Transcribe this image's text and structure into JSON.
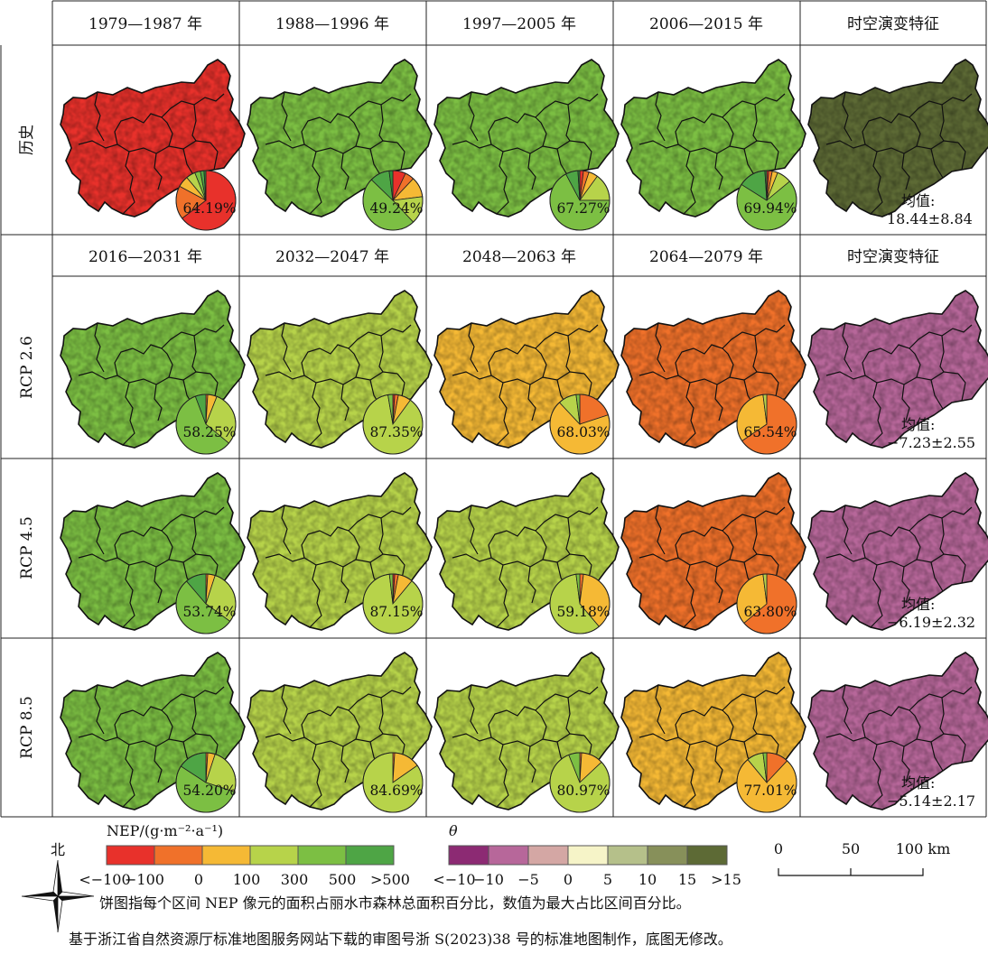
{
  "headers_top": [
    "1979—1987 年",
    "1988—1996 年",
    "1997—2005 年",
    "2006—2015 年",
    "时空演变特征"
  ],
  "headers_bottom": [
    "2016—2031 年",
    "2032—2047 年",
    "2048—2063 年",
    "2064—2079 年",
    "时空演变特征"
  ],
  "rows": [
    {
      "label": "历史",
      "cells": [
        {
          "map_class": 0,
          "pie": [
            0.6419,
            0.18,
            0.06,
            0.05,
            0.03,
            0.02,
            0.01
          ],
          "pct": "64.19%"
        },
        {
          "map_class": 4,
          "pie": [
            0.07,
            0.05,
            0.11,
            0.15,
            0.4924,
            0.1076,
            0.02
          ],
          "pct": "49.24%"
        },
        {
          "map_class": 4,
          "pie": [
            0.02,
            0.03,
            0.05,
            0.15,
            0.6727,
            0.0673,
            0.01
          ],
          "pct": "67.27%"
        },
        {
          "map_class": 4,
          "pie": [
            0.01,
            0.02,
            0.03,
            0.08,
            0.6994,
            0.1506,
            0.01
          ],
          "pct": "69.94%"
        }
      ],
      "theta": {
        "map_class": 6,
        "label": "均值:",
        "value": "18.44±8.84"
      }
    },
    {
      "label": "RCP 2.6",
      "cells": [
        {
          "map_class": 4,
          "pie": [
            0.0,
            0.01,
            0.05,
            0.3,
            0.5825,
            0.0575,
            0.0
          ],
          "pct": "58.25%"
        },
        {
          "map_class": 3,
          "pie": [
            0.01,
            0.02,
            0.07,
            0.8735,
            0.0265,
            0.0,
            0.0
          ],
          "pct": "87.35%"
        },
        {
          "map_class": 2,
          "pie": [
            0.0,
            0.2,
            0.6803,
            0.0997,
            0.02,
            0.0,
            0.0
          ],
          "pct": "68.03%"
        },
        {
          "map_class": 1,
          "pie": [
            0.0,
            0.6554,
            0.3246,
            0.02,
            0.0,
            0.0,
            0.0
          ],
          "pct": "65.54%"
        }
      ],
      "theta": {
        "map_class": 1,
        "label": "均值:",
        "value": "−7.23±2.55"
      }
    },
    {
      "label": "RCP 4.5",
      "cells": [
        {
          "map_class": 4,
          "pie": [
            0.0,
            0.01,
            0.04,
            0.3,
            0.5374,
            0.1126,
            0.0
          ],
          "pct": "53.74%"
        },
        {
          "map_class": 3,
          "pie": [
            0.01,
            0.02,
            0.08,
            0.8715,
            0.0185,
            0.0,
            0.0
          ],
          "pct": "87.15%"
        },
        {
          "map_class": 3,
          "pie": [
            0.0,
            0.02,
            0.3682,
            0.5918,
            0.02,
            0.0,
            0.0
          ],
          "pct": "59.18%"
        },
        {
          "map_class": 1,
          "pie": [
            0.0,
            0.638,
            0.342,
            0.02,
            0.0,
            0.0,
            0.0
          ],
          "pct": "63.80%"
        }
      ],
      "theta": {
        "map_class": 1,
        "label": "均值:",
        "value": "−6.19±2.32"
      }
    },
    {
      "label": "RCP 8.5",
      "cells": [
        {
          "map_class": 4,
          "pie": [
            0.0,
            0.01,
            0.04,
            0.25,
            0.542,
            0.158,
            0.0
          ],
          "pct": "54.20%"
        },
        {
          "map_class": 3,
          "pie": [
            0.0,
            0.01,
            0.1431,
            0.8469,
            0.0,
            0.0,
            0.0
          ],
          "pct": "84.69%"
        },
        {
          "map_class": 3,
          "pie": [
            0.0,
            0.01,
            0.12,
            0.8097,
            0.0603,
            0.0,
            0.0
          ],
          "pct": "80.97%"
        },
        {
          "map_class": 2,
          "pie": [
            0.0,
            0.12,
            0.7701,
            0.0899,
            0.02,
            0.0,
            0.0
          ],
          "pct": "77.01%"
        }
      ],
      "theta": {
        "map_class": 1,
        "label": "均值:",
        "value": "−5.14±2.17"
      }
    }
  ],
  "nep_colors": [
    "#e8312b",
    "#f0712a",
    "#f5b935",
    "#b7d34a",
    "#7cbf43",
    "#4ea545",
    "#2f8f3d"
  ],
  "theta_colors": [
    "#8c2a73",
    "#b7679a",
    "#d4a7a4",
    "#f6f4c8",
    "#b5c08a",
    "#87905a",
    "#5d6a35"
  ],
  "legend": {
    "nep_title": "NEP/(g·m⁻²·a⁻¹)",
    "nep_colors": [
      "#e8312b",
      "#f0712a",
      "#f5b935",
      "#b7d34a",
      "#7cbf43",
      "#4ea545"
    ],
    "nep_ticks": [
      "<−100",
      "−100",
      "0",
      "100",
      "300",
      "500",
      ">500"
    ],
    "theta_title": "θ",
    "theta_colors": [
      "#8c2a73",
      "#b7679a",
      "#d4a7a4",
      "#f6f4c8",
      "#b5c08a",
      "#87905a",
      "#5d6a35"
    ],
    "theta_ticks": [
      "<−10",
      "−10",
      "−5",
      "0",
      "5",
      "10",
      "15",
      ">15"
    ],
    "scale_ticks": [
      "0",
      "50",
      "100 km"
    ],
    "north_label": "北"
  },
  "notes": [
    "饼图指每个区间 NEP 像元的面积占丽水市森林总面积百分比，数值为最大占比区间百分比。",
    "基于浙江省自然资源厅标准地图服务网站下载的审图号浙 S(2023)38 号的标准地图制作，底图无修改。"
  ]
}
